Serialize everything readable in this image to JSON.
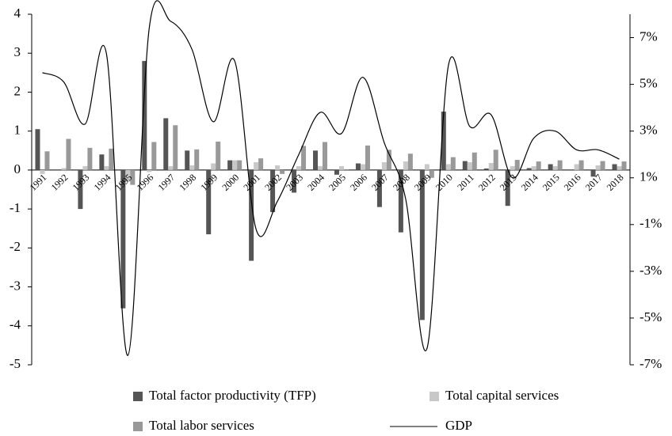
{
  "chart_data": {
    "type": "bar-line",
    "categories": [
      "1991",
      "1992",
      "1993",
      "1994",
      "1995",
      "1996",
      "1997",
      "1998",
      "1999",
      "2000",
      "2001",
      "2002",
      "2003",
      "2004",
      "2005",
      "2006",
      "2007",
      "2008",
      "2009",
      "2010",
      "2011",
      "2012",
      "2013",
      "2014",
      "2015",
      "2016",
      "2017",
      "2018"
    ],
    "series": [
      {
        "name": "Total factor productivity (TFP)",
        "color": "#555555",
        "values": [
          1.05,
          0,
          -1.0,
          0.4,
          -3.55,
          2.8,
          1.33,
          0.5,
          -1.65,
          0.25,
          -2.33,
          -1.08,
          -0.58,
          0.5,
          -0.12,
          0.17,
          -0.95,
          -1.6,
          -3.85,
          1.5,
          0.23,
          0.04,
          -0.92,
          0.05,
          0.15,
          0,
          -0.17,
          0.15
        ]
      },
      {
        "name": "Total capital services",
        "color": "#c8c8c8",
        "values": [
          -0.1,
          0.05,
          0.1,
          0.1,
          -0.3,
          -0.05,
          0.1,
          0.12,
          0.17,
          0.25,
          0.2,
          0.12,
          0.1,
          0.1,
          0.1,
          0.15,
          0.2,
          0.22,
          0.15,
          0.15,
          0.2,
          0.18,
          0.1,
          0.1,
          0.1,
          0.15,
          0.12,
          0.1
        ]
      },
      {
        "name": "Total labor services",
        "color": "#999999",
        "values": [
          0.48,
          0.8,
          0.57,
          0.55,
          -0.38,
          0.72,
          1.15,
          0.53,
          0.73,
          0.25,
          0.3,
          -0.1,
          0.62,
          0.72,
          0.02,
          0.63,
          0.52,
          0.42,
          -0.2,
          0.33,
          0.45,
          0.52,
          0.26,
          0.22,
          0.25,
          0.25,
          0.23,
          0.22
        ]
      },
      {
        "name": "GDP",
        "color": "#000000",
        "axis": "y2",
        "values": [
          5.5,
          5.1,
          3.3,
          6.3,
          -6.6,
          7.4,
          7.7,
          6.5,
          3.4,
          6.0,
          -1.2,
          0.0,
          2.0,
          3.8,
          2.9,
          5.3,
          2.5,
          0.1,
          -6.3,
          5.8,
          3.2,
          3.7,
          1.0,
          2.7,
          3.0,
          2.2,
          2.2,
          1.8
        ]
      }
    ],
    "ylim": [
      -5,
      4
    ],
    "yticks": [
      4,
      3,
      2,
      1,
      0,
      -1,
      -2,
      -3,
      -4,
      -5
    ],
    "y2lim": [
      -7,
      8
    ],
    "y2ticks": [
      {
        "value": 7,
        "label": "7%"
      },
      {
        "value": 5,
        "label": "5%"
      },
      {
        "value": 3,
        "label": "3%"
      },
      {
        "value": 1,
        "label": "1%"
      },
      {
        "value": -1,
        "label": "-1%"
      },
      {
        "value": -3,
        "label": "-3%"
      },
      {
        "value": -5,
        "label": "-5%"
      },
      {
        "value": -7,
        "label": "-7%"
      }
    ]
  }
}
